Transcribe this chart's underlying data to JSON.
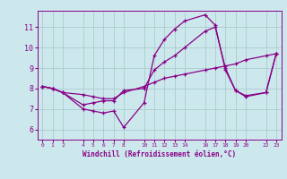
{
  "xlabel": "Windchill (Refroidissement éolien,°C)",
  "background_color": "#cce8ec",
  "line_color": "#880088",
  "grid_color": "#aacccc",
  "x_ticks": [
    0,
    1,
    2,
    4,
    5,
    6,
    7,
    8,
    10,
    11,
    12,
    13,
    14,
    16,
    17,
    18,
    19,
    20,
    22,
    23
  ],
  "ylim": [
    5.5,
    11.8
  ],
  "xlim": [
    -0.5,
    23.5
  ],
  "series1_x": [
    0,
    1,
    2,
    4,
    5,
    6,
    7,
    8,
    10,
    11,
    12,
    13,
    14,
    16,
    17,
    18,
    19,
    20,
    22,
    23
  ],
  "series1_y": [
    8.1,
    8.0,
    7.8,
    7.0,
    6.9,
    6.8,
    6.9,
    6.1,
    7.3,
    9.6,
    10.4,
    10.9,
    11.3,
    11.6,
    11.1,
    8.9,
    7.9,
    7.6,
    7.8,
    9.7
  ],
  "series2_x": [
    0,
    1,
    2,
    4,
    5,
    6,
    7,
    8,
    10,
    11,
    12,
    13,
    14,
    16,
    17,
    18,
    19,
    20,
    22,
    23
  ],
  "series2_y": [
    8.1,
    8.0,
    7.8,
    7.7,
    7.6,
    7.5,
    7.5,
    7.8,
    8.1,
    8.3,
    8.5,
    8.6,
    8.7,
    8.9,
    9.0,
    9.1,
    9.2,
    9.4,
    9.6,
    9.7
  ],
  "series3_x": [
    0,
    1,
    2,
    4,
    5,
    6,
    7,
    8,
    10,
    11,
    12,
    13,
    14,
    16,
    17,
    18,
    19,
    20,
    22,
    23
  ],
  "series3_y": [
    8.1,
    8.0,
    7.8,
    7.2,
    7.3,
    7.4,
    7.4,
    7.9,
    8.0,
    8.9,
    9.3,
    9.6,
    10.0,
    10.8,
    11.0,
    9.0,
    7.9,
    7.65,
    7.8,
    9.7
  ],
  "yticks": [
    6,
    7,
    8,
    9,
    10,
    11
  ]
}
